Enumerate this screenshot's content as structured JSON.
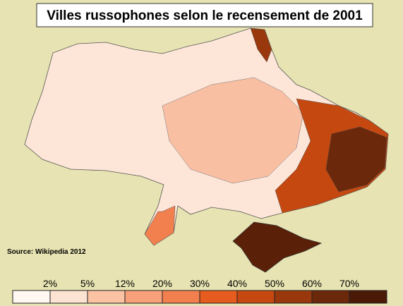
{
  "title": "Villes russophones selon le recensement de 2001",
  "source": "Source: Wikipedia 2012",
  "legend": {
    "labels": [
      "2%",
      "5%",
      "12%",
      "20%",
      "30%",
      "40%",
      "50%",
      "60%",
      "70%"
    ],
    "colors": [
      "#fff8f2",
      "#fde3d2",
      "#fbc2a4",
      "#f8a07a",
      "#f2804f",
      "#e65c1e",
      "#c44810",
      "#99380c",
      "#6c280a",
      "#4a1a06"
    ]
  }
}
